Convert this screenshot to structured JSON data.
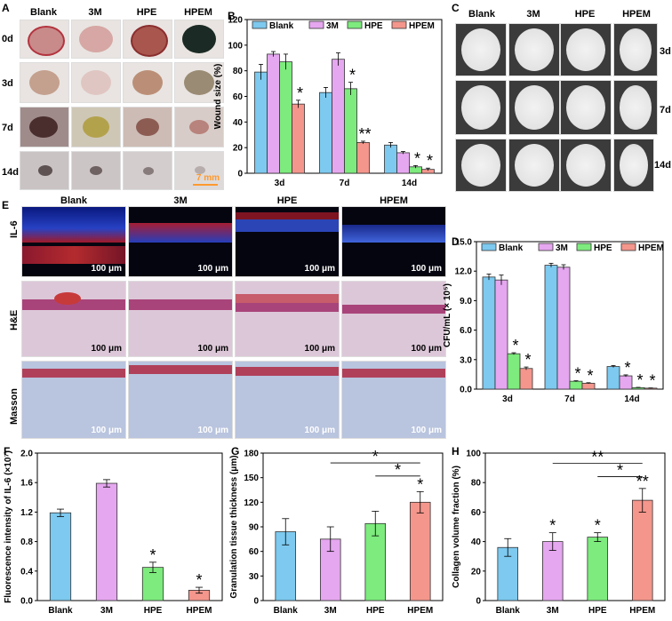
{
  "panels": {
    "A": {
      "label": "A",
      "columns": [
        "Blank",
        "3M",
        "HPE",
        "HPEM"
      ],
      "rows": [
        "0d",
        "3d",
        "7d",
        "14d"
      ],
      "scale_bar": "7 mm"
    },
    "C": {
      "label": "C",
      "columns": [
        "Blank",
        "3M",
        "HPE",
        "HPEM"
      ],
      "rows": [
        "3d",
        "7d",
        "14d"
      ]
    },
    "E": {
      "label": "E",
      "columns": [
        "Blank",
        "3M",
        "HPE",
        "HPEM"
      ],
      "rows": [
        "IL-6",
        "H&E",
        "Masson"
      ],
      "scale_bar": "100 μm"
    }
  },
  "colors": {
    "Blank": "#7dc9ef",
    "3M": "#e5a7ef",
    "HPE": "#7deb7d",
    "HPEM": "#f4968c"
  },
  "chart_data": [
    {
      "id": "B",
      "panel_label": "B",
      "type": "bar",
      "categories": [
        "3d",
        "7d",
        "14d"
      ],
      "series": [
        {
          "name": "Blank",
          "values": [
            79,
            63,
            22
          ],
          "errors": [
            6,
            4,
            2
          ]
        },
        {
          "name": "3M",
          "values": [
            93,
            89,
            16
          ],
          "errors": [
            2,
            5,
            1
          ]
        },
        {
          "name": "HPE",
          "values": [
            87,
            66,
            5
          ],
          "errors": [
            6,
            5,
            1
          ]
        },
        {
          "name": "HPEM",
          "values": [
            54,
            24,
            3
          ],
          "errors": [
            3,
            1,
            1
          ]
        }
      ],
      "ylabel": "Wound size (%)",
      "ylim": [
        0,
        120
      ],
      "yticks": [
        0,
        20,
        40,
        60,
        80,
        100,
        120
      ],
      "legend": "top",
      "annotations": [
        {
          "text": "*",
          "category": 0,
          "series": 3
        },
        {
          "text": "*",
          "category": 1,
          "series": 2
        },
        {
          "text": "**",
          "category": 1,
          "series": 3
        },
        {
          "text": "*",
          "category": 2,
          "series": 2
        },
        {
          "text": "*",
          "category": 2,
          "series": 3
        }
      ]
    },
    {
      "id": "D",
      "panel_label": "D",
      "type": "bar",
      "categories": [
        "3d",
        "7d",
        "14d"
      ],
      "series": [
        {
          "name": "Blank",
          "values": [
            11.4,
            12.6,
            2.3
          ],
          "errors": [
            0.3,
            0.2,
            0.1
          ]
        },
        {
          "name": "3M",
          "values": [
            11.1,
            12.4,
            1.35
          ],
          "errors": [
            0.5,
            0.25,
            0.1
          ]
        },
        {
          "name": "HPE",
          "values": [
            3.6,
            0.8,
            0.15
          ],
          "errors": [
            0.1,
            0.05,
            0.03
          ]
        },
        {
          "name": "HPEM",
          "values": [
            2.1,
            0.6,
            0.1
          ],
          "errors": [
            0.15,
            0.05,
            0.02
          ]
        }
      ],
      "ylabel": "CFU/mL (× 10⁵)",
      "ylim": [
        0,
        15
      ],
      "yticks": [
        "0.0",
        "3.0",
        "6.0",
        "9.0",
        "12.0",
        "15.0"
      ],
      "legend": "top",
      "annotations": [
        {
          "text": "*",
          "category": 0,
          "series": 2
        },
        {
          "text": "*",
          "category": 0,
          "series": 3
        },
        {
          "text": "*",
          "category": 1,
          "series": 2
        },
        {
          "text": "*",
          "category": 1,
          "series": 3
        },
        {
          "text": "*",
          "category": 2,
          "series": 1
        },
        {
          "text": "*",
          "category": 2,
          "series": 2
        },
        {
          "text": "*",
          "category": 2,
          "series": 3
        }
      ]
    },
    {
      "id": "F",
      "panel_label": "F",
      "type": "bar",
      "categories": [
        "Blank",
        "3M",
        "HPE",
        "HPEM"
      ],
      "values": [
        1.19,
        1.59,
        0.45,
        0.14
      ],
      "errors": [
        0.05,
        0.05,
        0.07,
        0.04
      ],
      "ylabel": "Fluorescence intensity of IL-6 (×10⁷)",
      "ylim": [
        0,
        2.0
      ],
      "yticks": [
        "0.0",
        "0.4",
        "0.8",
        "1.2",
        "1.6",
        "2.0"
      ],
      "annotations": [
        {
          "text": "*",
          "category": 2
        },
        {
          "text": "*",
          "category": 3
        }
      ]
    },
    {
      "id": "G",
      "panel_label": "G",
      "type": "bar",
      "categories": [
        "Blank",
        "3M",
        "HPE",
        "HPEM"
      ],
      "values": [
        84,
        75,
        94,
        120
      ],
      "errors": [
        16,
        15,
        15,
        13
      ],
      "ylabel": "Granulation tissue thickness (μm)",
      "ylim": [
        0,
        180
      ],
      "yticks": [
        "0",
        "30",
        "60",
        "90",
        "120",
        "150",
        "180"
      ],
      "annotations": [
        {
          "text": "*",
          "category": 3
        }
      ],
      "brackets": [
        {
          "from": 1,
          "to": 3,
          "text": "*",
          "y": 168
        },
        {
          "from": 2,
          "to": 3,
          "text": "*",
          "y": 152
        }
      ]
    },
    {
      "id": "H",
      "panel_label": "H",
      "type": "bar",
      "categories": [
        "Blank",
        "3M",
        "HPE",
        "HPEM"
      ],
      "values": [
        36,
        40,
        43,
        68
      ],
      "errors": [
        6,
        6,
        3,
        8
      ],
      "ylabel": "Collagen volume fraction (%)",
      "ylim": [
        0,
        100
      ],
      "yticks": [
        "0",
        "20",
        "40",
        "60",
        "80",
        "100"
      ],
      "annotations": [
        {
          "text": "*",
          "category": 1
        },
        {
          "text": "*",
          "category": 2
        },
        {
          "text": "**",
          "category": 3
        }
      ],
      "brackets": [
        {
          "from": 1,
          "to": 3,
          "text": "**",
          "y": 93
        },
        {
          "from": 2,
          "to": 3,
          "text": "*",
          "y": 84
        }
      ]
    }
  ]
}
